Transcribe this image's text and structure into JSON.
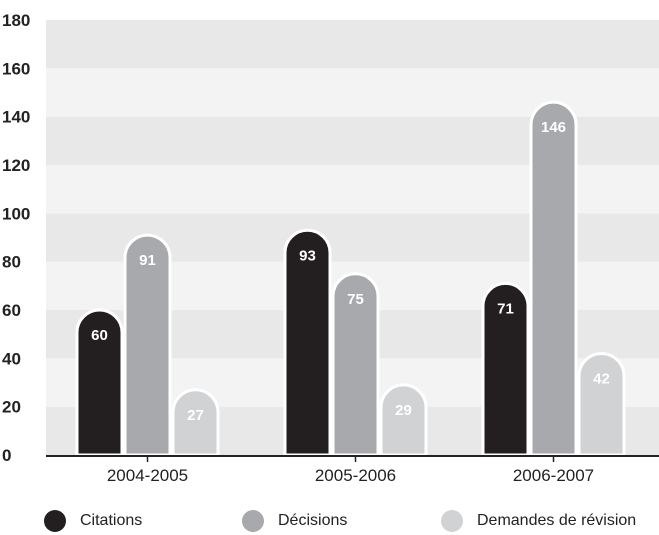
{
  "chart_data": {
    "type": "bar",
    "title": "",
    "xlabel": "",
    "ylabel": "",
    "ylim": [
      0,
      180
    ],
    "yticks": [
      0,
      20,
      40,
      60,
      80,
      100,
      120,
      140,
      160,
      180
    ],
    "categories": [
      "2004-2005",
      "2005-2006",
      "2006-2007"
    ],
    "series": [
      {
        "name": "Citations",
        "values": [
          60,
          93,
          71
        ],
        "color": "#231f20",
        "label_color": "#ffffff"
      },
      {
        "name": "Décisions",
        "values": [
          91,
          75,
          146
        ],
        "color": "#a7a9ac",
        "label_color": "#ffffff"
      },
      {
        "name": "Demandes de révision",
        "values": [
          27,
          29,
          42
        ],
        "color": "#d1d2d4",
        "label_color": "#ffffff"
      }
    ],
    "grid": "alternating horizontal bands",
    "band_colors": [
      "#e8e8e8",
      "#f3f3f3"
    ],
    "legend_position": "bottom"
  }
}
